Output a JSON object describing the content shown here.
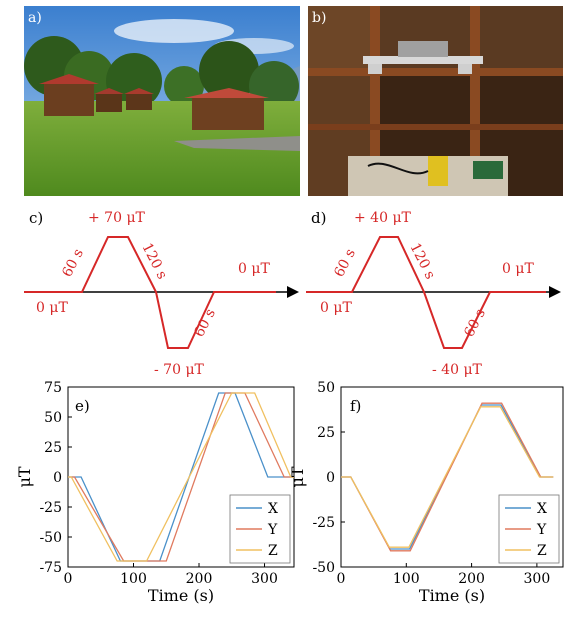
{
  "panels": {
    "a": {
      "label": "a)"
    },
    "b": {
      "label": "b)"
    },
    "c": {
      "label": "c)",
      "top": "+ 70 μT",
      "bottom": "- 70 μT",
      "start": "0 μT",
      "end": "0 μT",
      "ramp_up": "60 s",
      "hold": "120 s",
      "ramp_down": "60 s",
      "color": "#d62828"
    },
    "d": {
      "label": "d)",
      "top": "+ 40 μT",
      "bottom": "- 40 μT",
      "start": "0 μT",
      "end": "0 μT",
      "ramp_up": "60 s",
      "hold": "120 s",
      "ramp_down": "60 s",
      "color": "#d62828"
    },
    "e": {
      "label": "e)"
    },
    "f": {
      "label": "f)"
    }
  },
  "chart_data": [
    {
      "type": "line",
      "panel": "e",
      "xlabel": "Time (s)",
      "ylabel": "μT",
      "xlim": [
        0,
        345
      ],
      "ylim": [
        -75,
        75
      ],
      "xticks": [
        0,
        100,
        200,
        300
      ],
      "yticks": [
        75,
        50,
        25,
        0,
        -25,
        -50,
        -75
      ],
      "legend": "bottom-right",
      "series": [
        {
          "name": "X",
          "color": "#4a90c9",
          "x": [
            0,
            20,
            80,
            140,
            230,
            255,
            305,
            345
          ],
          "y": [
            0,
            0,
            -70,
            -70,
            70,
            70,
            0,
            0
          ]
        },
        {
          "name": "Y",
          "color": "#e07a5f",
          "x": [
            0,
            10,
            85,
            150,
            240,
            270,
            330,
            345
          ],
          "y": [
            0,
            0,
            -70,
            -70,
            70,
            70,
            0,
            0
          ]
        },
        {
          "name": "Z",
          "color": "#f0c060",
          "x": [
            0,
            5,
            75,
            120,
            250,
            285,
            340,
            345
          ],
          "y": [
            0,
            0,
            -70,
            -70,
            70,
            70,
            0,
            0
          ]
        }
      ]
    },
    {
      "type": "line",
      "panel": "f",
      "xlabel": "Time (s)",
      "ylabel": "μT",
      "xlim": [
        0,
        340
      ],
      "ylim": [
        -50,
        50
      ],
      "xticks": [
        0,
        100,
        200,
        300
      ],
      "yticks": [
        50,
        25,
        0,
        -25,
        -50
      ],
      "legend": "bottom-right",
      "series": [
        {
          "name": "X",
          "color": "#4a90c9",
          "x": [
            0,
            15,
            75,
            105,
            215,
            245,
            305,
            325
          ],
          "y": [
            0,
            0,
            -40,
            -40,
            40,
            40,
            0,
            0
          ]
        },
        {
          "name": "Y",
          "color": "#e07a5f",
          "x": [
            0,
            15,
            76,
            106,
            216,
            246,
            306,
            325
          ],
          "y": [
            0,
            0,
            -41,
            -41,
            41,
            41,
            0,
            0
          ]
        },
        {
          "name": "Z",
          "color": "#f0c060",
          "x": [
            0,
            15,
            74,
            104,
            214,
            244,
            304,
            325
          ],
          "y": [
            0,
            0,
            -39,
            -39,
            39,
            39,
            0,
            0
          ]
        }
      ]
    }
  ]
}
